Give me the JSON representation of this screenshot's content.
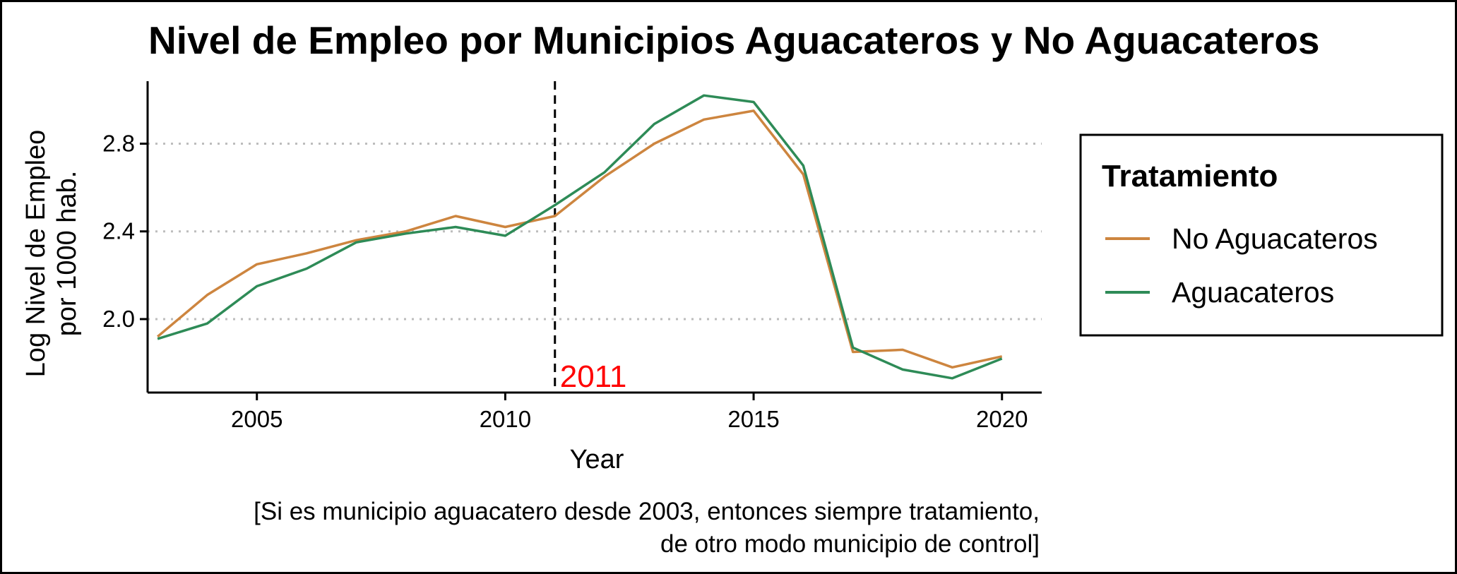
{
  "chart_data": {
    "type": "line",
    "title": "Nivel de Empleo por Municipios Aguacateros y No Aguacateros",
    "xlabel": "Year",
    "ylabel_lines": [
      "Log Nivel de Empleo",
      "por 1000 hab."
    ],
    "caption_lines": [
      "[Si es municipio aguacatero desde 2003, entonces siempre tratamiento,",
      "de otro modo municipio de control]"
    ],
    "xlim": [
      2002.8,
      2020.8
    ],
    "ylim": [
      1.665,
      3.085
    ],
    "x_ticks": [
      2005,
      2010,
      2015,
      2020
    ],
    "x_tick_labels": [
      "2005",
      "2010",
      "2015",
      "2020"
    ],
    "y_ticks": [
      2.0,
      2.4,
      2.8
    ],
    "y_tick_labels": [
      "2.0",
      "2.4",
      "2.8"
    ],
    "grid": "horizontal dotted at y ticks",
    "vline": {
      "x": 2011,
      "style": "dashed",
      "color": "#000000",
      "label": "2011",
      "label_color": "#ff0000"
    },
    "legend": {
      "title": "Tratamiento",
      "placement": "right"
    },
    "x": [
      2003,
      2004,
      2005,
      2006,
      2007,
      2008,
      2009,
      2010,
      2011,
      2012,
      2013,
      2014,
      2015,
      2016,
      2017,
      2018,
      2019,
      2020
    ],
    "series": [
      {
        "name": "No Aguacateros",
        "color": "#cd853f",
        "values": [
          1.92,
          2.11,
          2.25,
          2.3,
          2.36,
          2.4,
          2.47,
          2.42,
          2.47,
          2.65,
          2.8,
          2.91,
          2.95,
          2.66,
          1.85,
          1.86,
          1.78,
          1.83
        ]
      },
      {
        "name": "Aguacateros",
        "color": "#2e8b57",
        "values": [
          1.91,
          1.98,
          2.15,
          2.23,
          2.35,
          2.39,
          2.42,
          2.38,
          2.52,
          2.67,
          2.89,
          3.02,
          2.99,
          2.7,
          1.87,
          1.77,
          1.73,
          1.82
        ]
      }
    ]
  }
}
